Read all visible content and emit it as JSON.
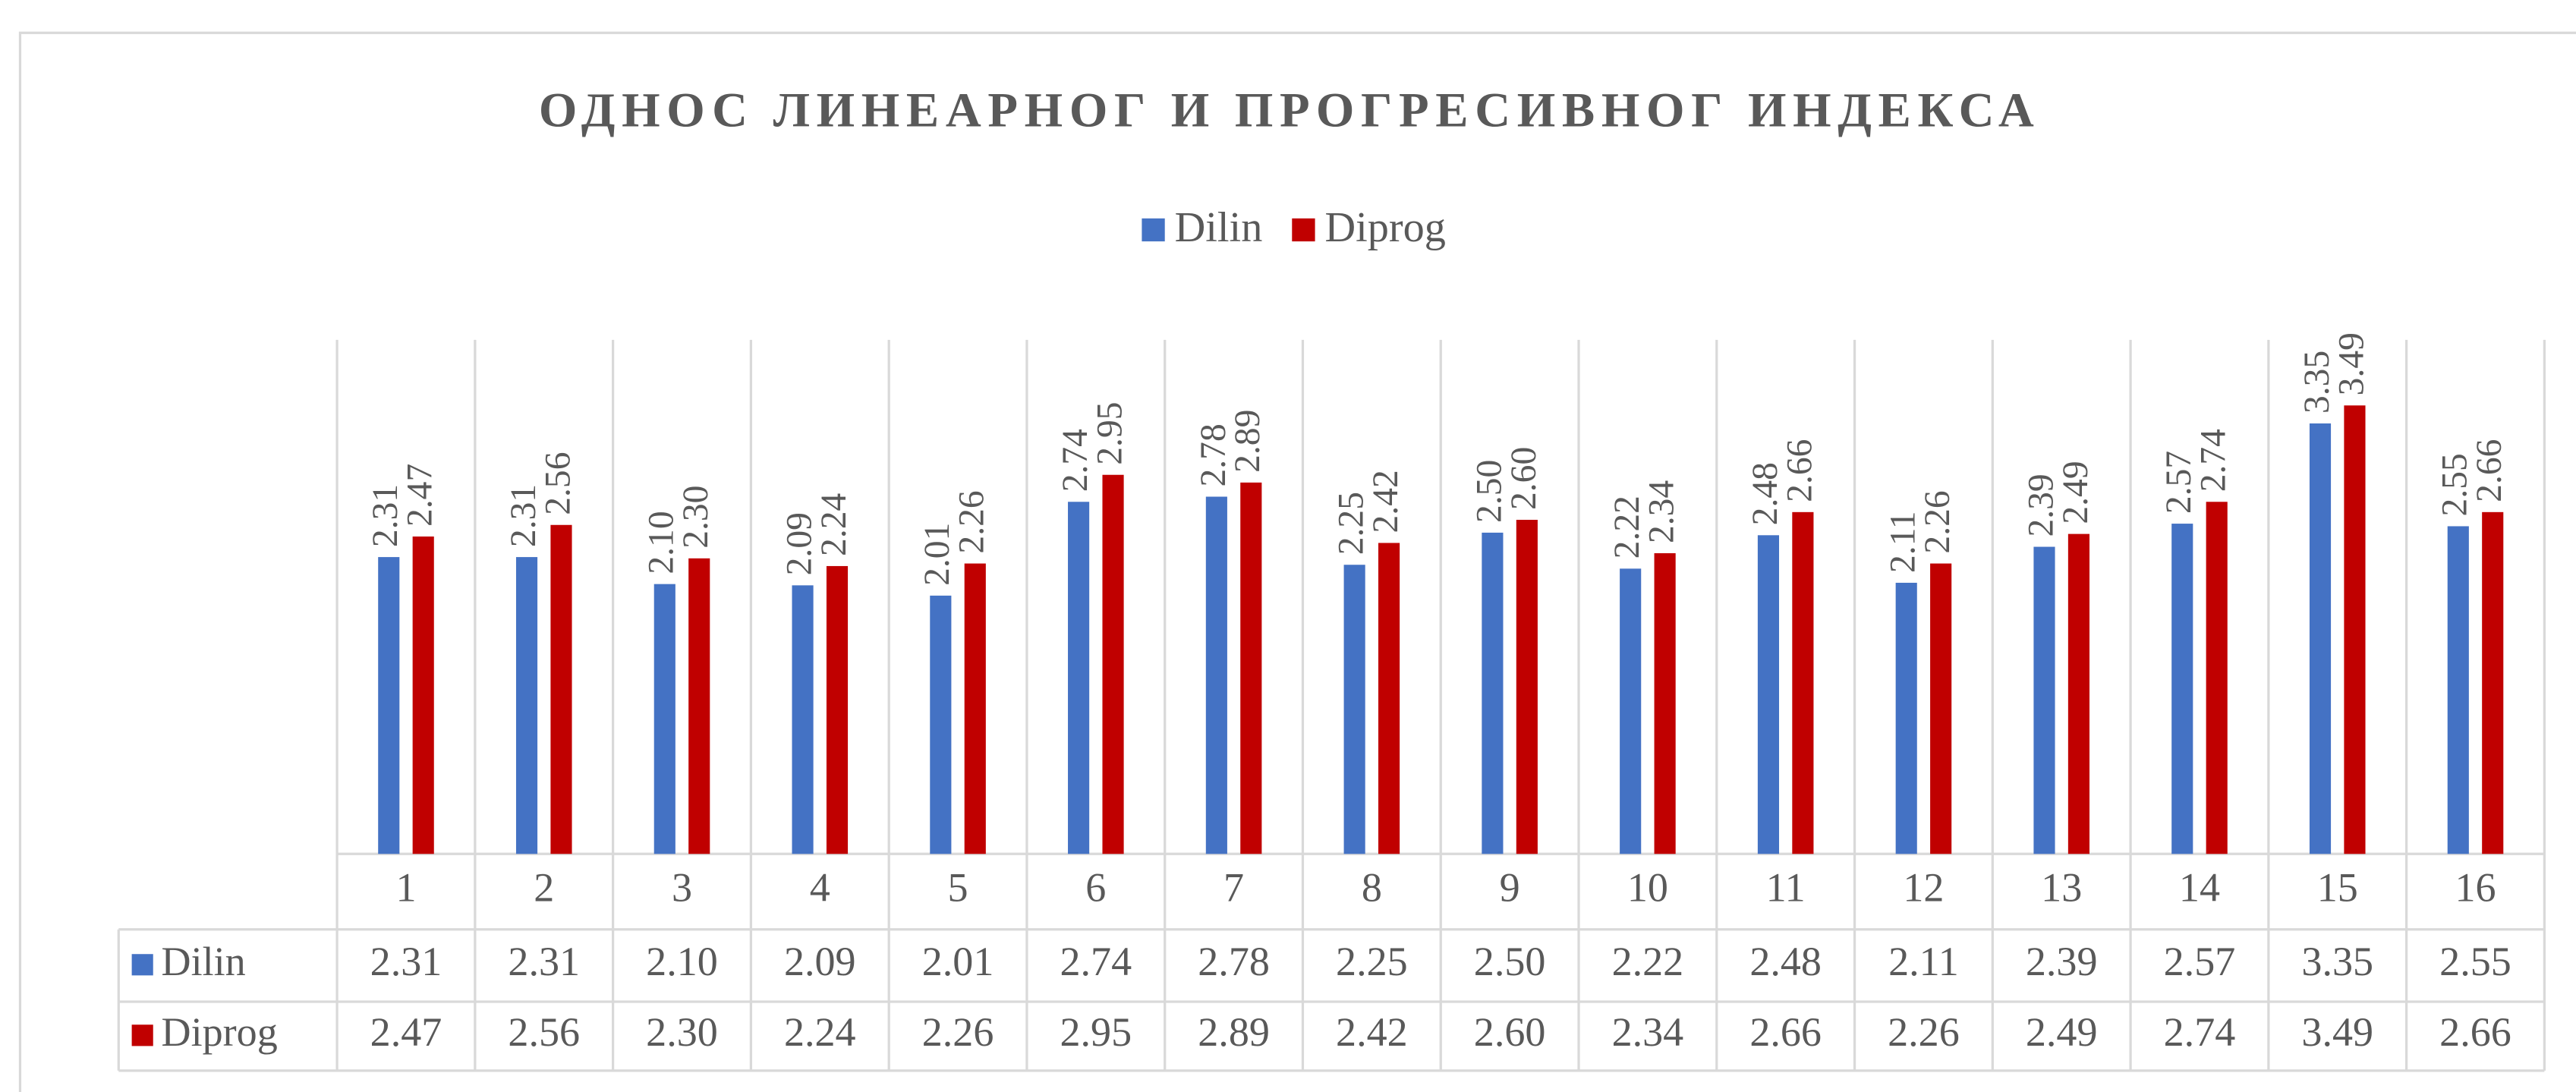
{
  "chart_data": {
    "type": "bar",
    "title": "ОДНОС ЛИНЕАРНОГ И ПРОГРЕСИВНОГ ИНДЕКСА",
    "categories": [
      "1",
      "2",
      "3",
      "4",
      "5",
      "6",
      "7",
      "8",
      "9",
      "10",
      "11",
      "12",
      "13",
      "14",
      "15",
      "16"
    ],
    "series": [
      {
        "name": "Dilin",
        "color": "#4472c4",
        "values": [
          2.31,
          2.31,
          2.1,
          2.09,
          2.01,
          2.74,
          2.78,
          2.25,
          2.5,
          2.22,
          2.48,
          2.11,
          2.39,
          2.57,
          3.35,
          2.55
        ],
        "value_labels": [
          "2.31",
          "2.31",
          "2.10",
          "2.09",
          "2.01",
          "2.74",
          "2.78",
          "2.25",
          "2.50",
          "2.22",
          "2.48",
          "2.11",
          "2.39",
          "2.57",
          "3.35",
          "2.55"
        ]
      },
      {
        "name": "Diprog",
        "color": "#c00000",
        "values": [
          2.47,
          2.56,
          2.3,
          2.24,
          2.26,
          2.95,
          2.89,
          2.42,
          2.6,
          2.34,
          2.66,
          2.26,
          2.49,
          2.74,
          3.49,
          2.66
        ],
        "value_labels": [
          "2.47",
          "2.56",
          "2.30",
          "2.24",
          "2.26",
          "2.95",
          "2.89",
          "2.42",
          "2.60",
          "2.34",
          "2.66",
          "2.26",
          "2.49",
          "2.74",
          "3.49",
          "2.66"
        ]
      }
    ],
    "ylim": [
      0,
      4
    ],
    "legend": "top",
    "data_table": true
  }
}
